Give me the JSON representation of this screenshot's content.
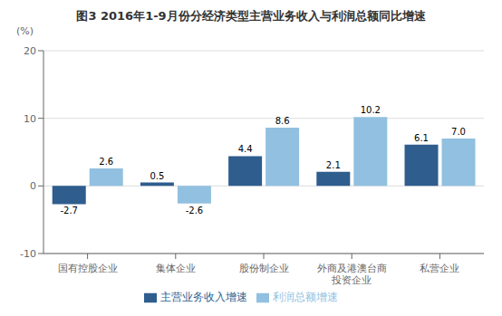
{
  "chart_data": {
    "type": "bar",
    "title": "图3  2016年1-9月份分经济类型主营业务收入与利润总额同比增速",
    "ylabel": "(%)",
    "categories": [
      "国有控股企业",
      "集体企业",
      "股份制企业",
      "外商及港澳台商\n投资企业",
      "私营企业"
    ],
    "series": [
      {
        "name": "主营业务收入增速",
        "color": "#2E5D8E",
        "values": [
          -2.7,
          0.5,
          4.4,
          2.1,
          6.1
        ]
      },
      {
        "name": "利润总额增速",
        "color": "#92C0E0",
        "values": [
          2.6,
          -2.6,
          8.6,
          10.2,
          7.0
        ],
        "value_labels": [
          "2.6",
          "-2.6",
          "8.6",
          "10.2",
          "7.0"
        ]
      }
    ],
    "ylim": [
      -10,
      20
    ],
    "yticks": [
      -10,
      0,
      10,
      20
    ],
    "grid": true,
    "legend": "bottom",
    "data_labels": true
  }
}
